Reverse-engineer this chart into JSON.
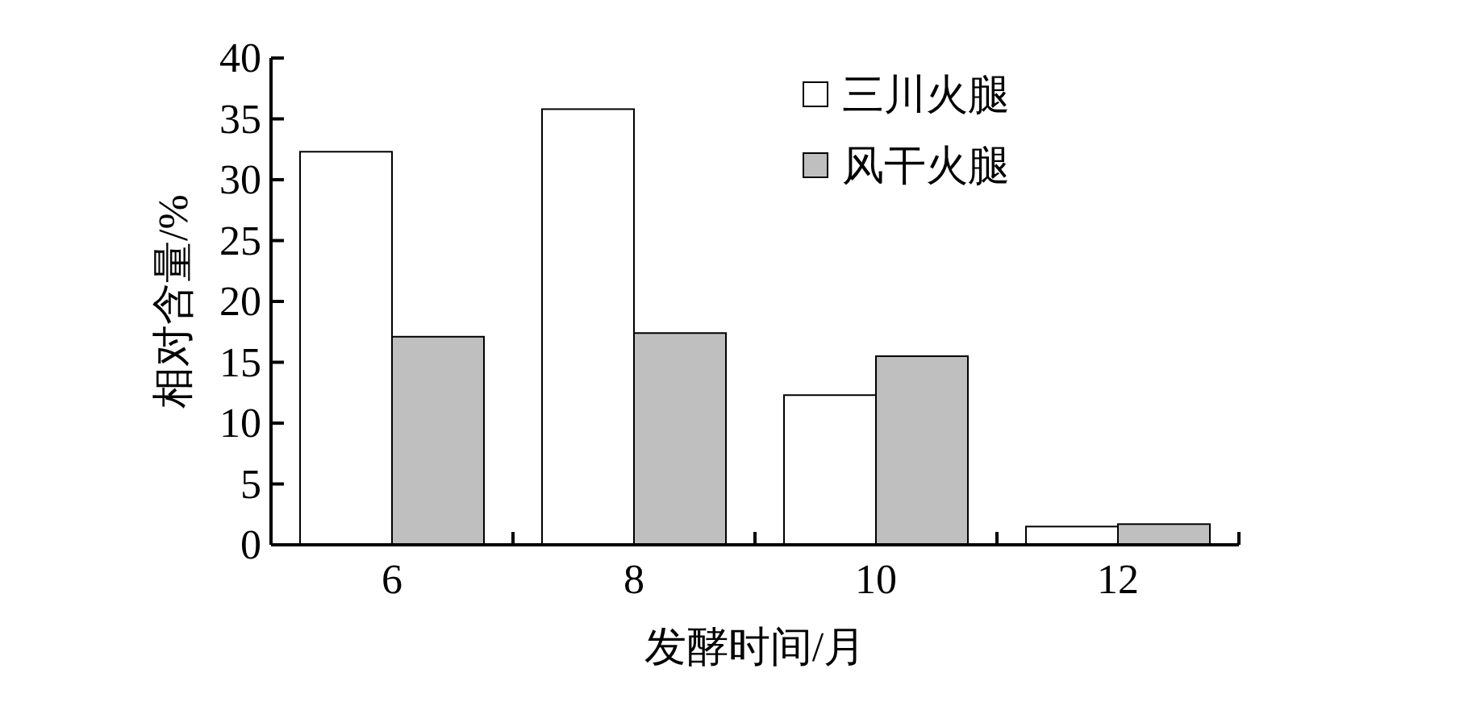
{
  "chart_data": {
    "type": "bar",
    "xlabel": "发酵时间/月",
    "ylabel": "相对含量/%",
    "categories": [
      "6",
      "8",
      "10",
      "12"
    ],
    "series": [
      {
        "name": "三川火腿",
        "color": "#ffffff",
        "values": [
          32.3,
          35.8,
          12.3,
          1.5
        ]
      },
      {
        "name": "风干火腿",
        "color": "#bfbfbf",
        "values": [
          17.1,
          17.4,
          15.5,
          1.7
        ]
      }
    ],
    "ylim": [
      0,
      40
    ],
    "yticks": [
      0,
      5,
      10,
      15,
      20,
      25,
      30,
      35,
      40
    ],
    "grid": false,
    "legend": "top right"
  }
}
